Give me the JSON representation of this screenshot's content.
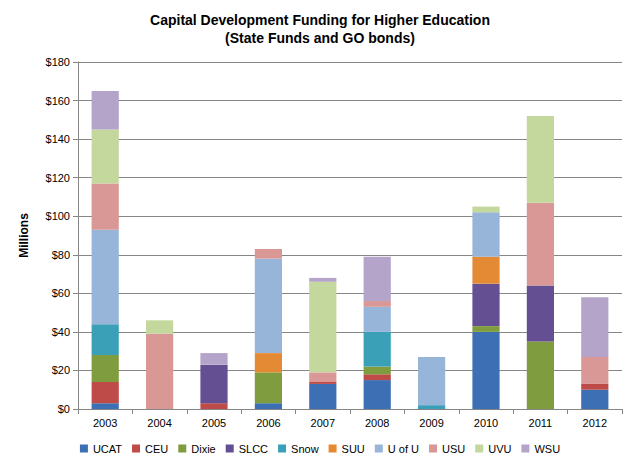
{
  "chart_data": {
    "type": "bar",
    "title": "Capital Development Funding for Higher Education",
    "subtitle": "(State Funds and GO bonds)",
    "y_label": "Millions",
    "categories": [
      "2003",
      "2004",
      "2005",
      "2006",
      "2007",
      "2008",
      "2009",
      "2010",
      "2011",
      "2012"
    ],
    "series": [
      {
        "name": "UCAT",
        "color": "#3d6fb5",
        "values": [
          3,
          0,
          0,
          3,
          13,
          15,
          0,
          40,
          0,
          10
        ]
      },
      {
        "name": "CEU",
        "color": "#be4b48",
        "values": [
          11,
          0,
          3,
          0,
          1,
          3,
          0,
          0,
          0,
          3
        ]
      },
      {
        "name": "Dixie",
        "color": "#7f9c3e",
        "values": [
          14,
          0,
          0,
          16,
          0,
          4,
          0,
          3,
          35,
          0
        ]
      },
      {
        "name": "SLCC",
        "color": "#634f91",
        "values": [
          0,
          0,
          20,
          0,
          0,
          0,
          0,
          22,
          29,
          0
        ]
      },
      {
        "name": "Snow",
        "color": "#3aa0b8",
        "values": [
          16,
          0,
          0,
          0,
          0,
          18,
          2,
          0,
          0,
          0
        ]
      },
      {
        "name": "SUU",
        "color": "#e48a35",
        "values": [
          0,
          0,
          0,
          10,
          0,
          0,
          0,
          14,
          0,
          0
        ]
      },
      {
        "name": "U of U",
        "color": "#97b5d9",
        "values": [
          49,
          0,
          0,
          49,
          0,
          13,
          25,
          23,
          0,
          0
        ]
      },
      {
        "name": "USU",
        "color": "#d99896",
        "values": [
          24,
          39,
          0,
          5,
          5,
          3,
          0,
          0,
          43,
          14
        ]
      },
      {
        "name": "UVU",
        "color": "#c4d79d",
        "values": [
          28,
          7,
          0,
          0,
          47,
          0,
          0,
          3,
          45,
          0
        ]
      },
      {
        "name": "WSU",
        "color": "#b4a4c9",
        "values": [
          20,
          0,
          6,
          0,
          2,
          23,
          0,
          0,
          0,
          31
        ]
      }
    ],
    "stacked": true,
    "ylim": [
      0,
      180
    ],
    "yticks": [
      {
        "value": 0,
        "label": "$0"
      },
      {
        "value": 20,
        "label": "$20"
      },
      {
        "value": 40,
        "label": "$40"
      },
      {
        "value": 60,
        "label": "$60"
      },
      {
        "value": 80,
        "label": "$80"
      },
      {
        "value": 100,
        "label": "$100"
      },
      {
        "value": 120,
        "label": "$120"
      },
      {
        "value": 140,
        "label": "$140"
      },
      {
        "value": 160,
        "label": "$160"
      },
      {
        "value": 180,
        "label": "$180"
      }
    ],
    "grid": true,
    "legend": "bottom"
  }
}
